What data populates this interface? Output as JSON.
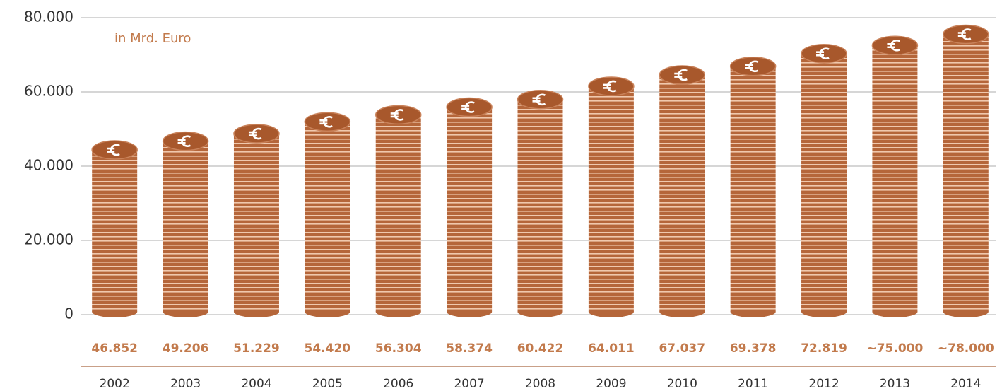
{
  "chart_data": {
    "type": "bar",
    "annotation": "in Mrd. Euro",
    "categories": [
      "2002",
      "2003",
      "2004",
      "2005",
      "2006",
      "2007",
      "2008",
      "2009",
      "2010",
      "2011",
      "2012",
      "2013",
      "2014"
    ],
    "values": [
      46852,
      49206,
      51229,
      54420,
      56304,
      58374,
      60422,
      64011,
      67037,
      69378,
      72819,
      75000,
      78000
    ],
    "value_labels": [
      "46.852",
      "49.206",
      "51.229",
      "54.420",
      "56.304",
      "58.374",
      "60.422",
      "64.011",
      "67.037",
      "69.378",
      "72.819",
      "~75.000",
      "~78.000"
    ],
    "color": "#b5663a",
    "ylim": [
      0,
      80000
    ],
    "yticks": [
      0,
      {
        "value": 20000,
        "label": "20.000"
      },
      {
        "value": 40000,
        "label": "40.000"
      },
      {
        "value": 60000,
        "label": "60.000"
      },
      {
        "value": 80000,
        "label": "80.000"
      }
    ],
    "grid": true
  }
}
